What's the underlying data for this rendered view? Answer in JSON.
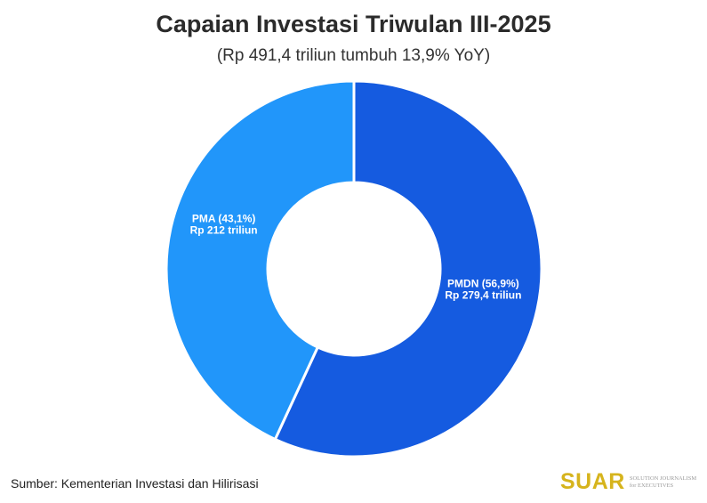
{
  "header": {
    "title": "Capaian Investasi Triwulan III-2025",
    "subtitle": "(Rp 491,4 triliun tumbuh 13,9% YoY)"
  },
  "chart_data": {
    "type": "pie",
    "title": "Capaian Investasi Triwulan III-2025",
    "subtitle": "(Rp 491,4 triliun tumbuh 13,9% YoY)",
    "slices": [
      {
        "name": "PMDN",
        "percent": 56.9,
        "value": 279.4,
        "label_line1": "PMDN (56,9%)",
        "label_line2": "Rp 279,4 triliun",
        "color": "#155be0"
      },
      {
        "name": "PMA",
        "percent": 43.1,
        "value": 212,
        "label_line1": "PMA (43,1%)",
        "label_line2": "Rp 212 triliun",
        "color": "#2196fa"
      }
    ]
  },
  "footer": {
    "source": "Sumber: Kementerian Investasi dan Hilirisasi",
    "logo_text": "SUAR",
    "logo_tagline": "SOLUTION JOURNALISM for EXECUTIVES"
  }
}
